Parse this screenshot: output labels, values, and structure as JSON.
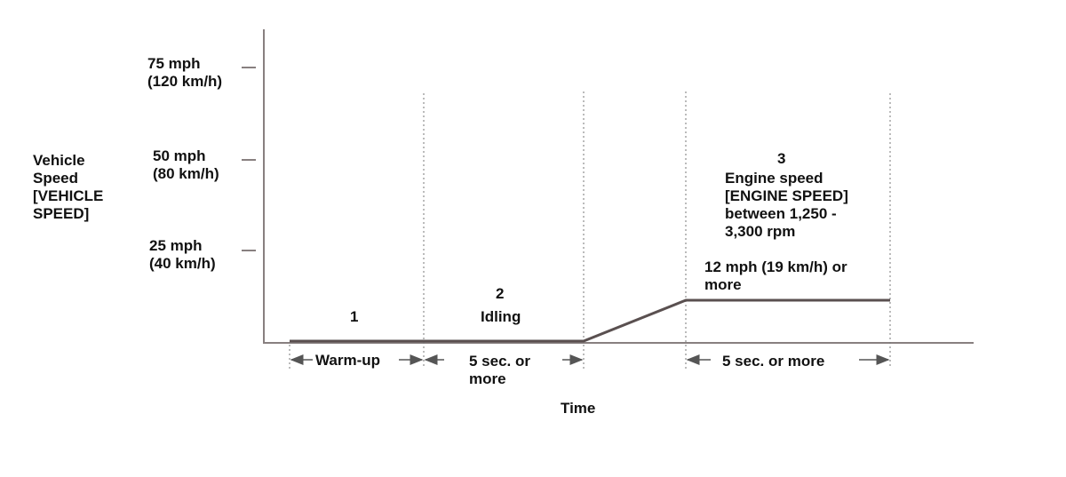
{
  "y_axis": {
    "title_lines": [
      "Vehicle",
      "Speed",
      "[VEHICLE",
      "SPEED]"
    ],
    "ticks": [
      {
        "mph": "75 mph",
        "kmh": "(120 km/h)"
      },
      {
        "mph": "50 mph",
        "kmh": "(80 km/h)"
      },
      {
        "mph": "25 mph",
        "kmh": "(40 km/h)"
      }
    ]
  },
  "x_axis": {
    "title": "Time"
  },
  "phases": [
    {
      "number": "1",
      "name": "",
      "duration": "Warm-up"
    },
    {
      "number": "2",
      "name": "Idling",
      "duration_lines": [
        "5 sec. or",
        "more"
      ]
    },
    {
      "number": "3",
      "condition_lines": [
        "Engine speed",
        "[ENGINE SPEED]",
        "between 1,250 -",
        "3,300 rpm"
      ],
      "speed_lines": [
        "12 mph (19 km/h) or",
        "more"
      ],
      "duration": "5 sec. or more"
    }
  ],
  "colors": {
    "line": "#5a5050",
    "axis": "#888080",
    "guide": "#777777",
    "text": "#111111"
  }
}
